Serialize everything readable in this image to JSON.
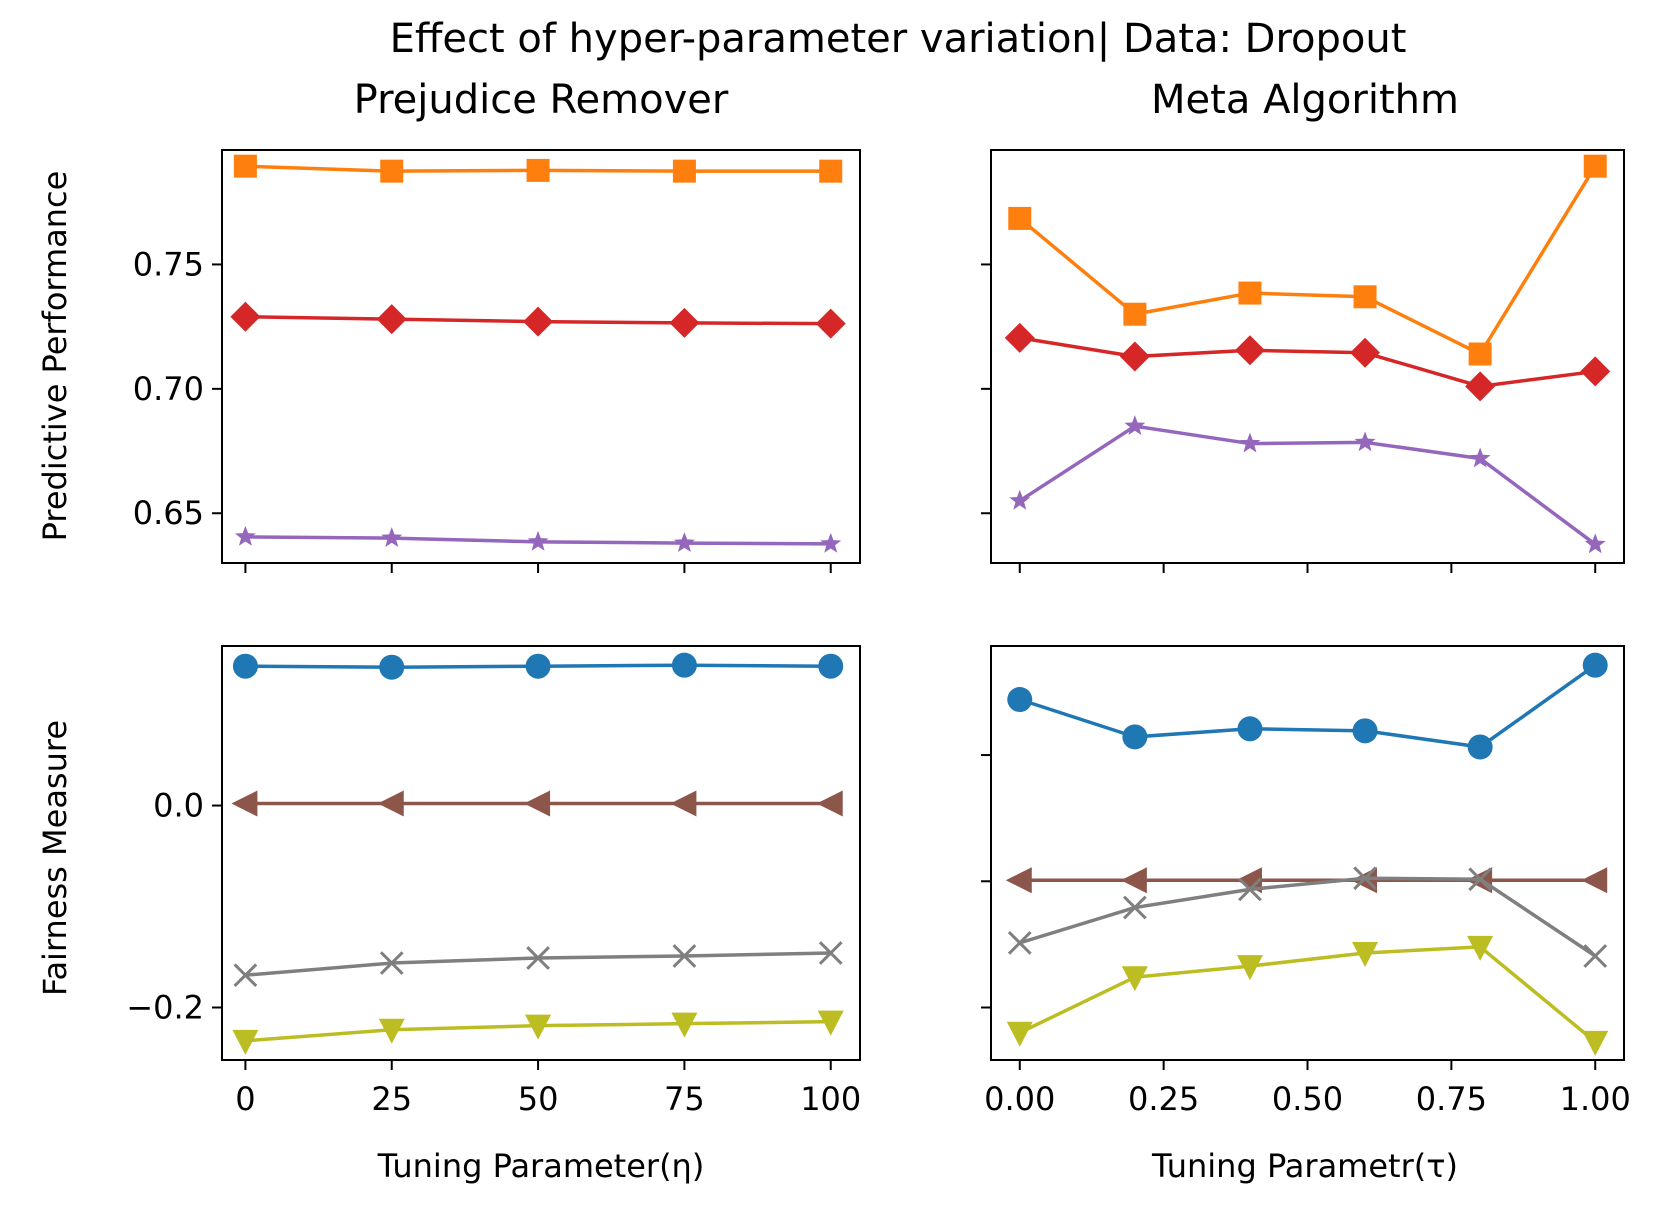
{
  "figure_title": "Effect of hyper-parameter variation| Data: Dropout",
  "columns": [
    "Prejudice Remover",
    "Meta Algorithm"
  ],
  "row_labels": [
    "Predictive Performance",
    "Fairness Measure"
  ],
  "x_labels": [
    "Tuning Parameter(η)",
    "Tuning Parametr(τ)"
  ],
  "colors": {
    "blue": "#1f77b4",
    "orange": "#ff7f0e",
    "red": "#d62728",
    "purple": "#9467bd",
    "brown": "#8c564b",
    "gray": "#7f7f7f",
    "olive": "#bcbd22"
  },
  "chart_data": [
    {
      "type": "line",
      "panel": "Prejudice Remover / Predictive Performance",
      "title": "Prejudice Remover",
      "xlabel": "",
      "ylabel": "Predictive Performance",
      "x": [
        0,
        25,
        50,
        75,
        100
      ],
      "xlim": [
        -4,
        105
      ],
      "ylim": [
        0.63,
        0.796
      ],
      "xticks": [
        0,
        25,
        50,
        75,
        100
      ],
      "xtick_labels_visible": false,
      "yticks": [
        0.65,
        0.7,
        0.75
      ],
      "ytick_labels": [
        "0.65",
        "0.70",
        "0.75"
      ],
      "grid": false,
      "series": [
        {
          "color": "#ff7f0e",
          "marker": "square",
          "values": [
            0.7895,
            0.7875,
            0.7878,
            0.7875,
            0.7875
          ]
        },
        {
          "color": "#d62728",
          "marker": "diamond",
          "values": [
            0.729,
            0.728,
            0.727,
            0.7265,
            0.7262
          ]
        },
        {
          "color": "#9467bd",
          "marker": "star",
          "values": [
            0.6405,
            0.64,
            0.6385,
            0.638,
            0.6377
          ]
        }
      ]
    },
    {
      "type": "line",
      "panel": "Meta Algorithm / Predictive Performance",
      "title": "Meta Algorithm",
      "xlabel": "",
      "ylabel": "",
      "x": [
        0.0,
        0.2,
        0.4,
        0.6,
        0.8,
        1.0
      ],
      "xlim": [
        -0.05,
        1.05
      ],
      "ylim": [
        0.63,
        0.796
      ],
      "xticks": [
        0.0,
        0.25,
        0.5,
        0.75,
        1.0
      ],
      "xtick_labels_visible": false,
      "yticks": [
        0.65,
        0.7,
        0.75
      ],
      "ytick_labels_visible": false,
      "grid": false,
      "series": [
        {
          "color": "#ff7f0e",
          "marker": "square",
          "values": [
            0.7685,
            0.73,
            0.7385,
            0.737,
            0.714,
            0.7895
          ]
        },
        {
          "color": "#d62728",
          "marker": "diamond",
          "values": [
            0.7205,
            0.713,
            0.7155,
            0.7145,
            0.701,
            0.707
          ]
        },
        {
          "color": "#9467bd",
          "marker": "star",
          "values": [
            0.655,
            0.685,
            0.678,
            0.6785,
            0.672,
            0.6375
          ]
        }
      ]
    },
    {
      "type": "line",
      "panel": "Prejudice Remover / Fairness Measure",
      "title": "",
      "xlabel": "Tuning Parameter(η)",
      "ylabel": "Fairness Measure",
      "x": [
        0,
        25,
        50,
        75,
        100
      ],
      "xlim": [
        -4,
        105
      ],
      "ylim": [
        -0.252,
        0.158
      ],
      "xticks": [
        0,
        25,
        50,
        75,
        100
      ],
      "xtick_labels": [
        "0",
        "25",
        "50",
        "75",
        "100"
      ],
      "yticks": [
        -0.2,
        0.0
      ],
      "ytick_labels": [
        "−0.2",
        "0.0"
      ],
      "grid": false,
      "series": [
        {
          "color": "#1f77b4",
          "marker": "circle",
          "values": [
            0.138,
            0.137,
            0.138,
            0.139,
            0.138
          ]
        },
        {
          "color": "#8c564b",
          "marker": "triangle-left",
          "values": [
            0.002,
            0.002,
            0.002,
            0.002,
            0.002
          ]
        },
        {
          "color": "#7f7f7f",
          "marker": "x",
          "values": [
            -0.168,
            -0.156,
            -0.151,
            -0.149,
            -0.146
          ]
        },
        {
          "color": "#bcbd22",
          "marker": "triangle-down",
          "values": [
            -0.233,
            -0.222,
            -0.218,
            -0.216,
            -0.214
          ]
        }
      ]
    },
    {
      "type": "line",
      "panel": "Meta Algorithm / Fairness Measure",
      "title": "",
      "xlabel": "Tuning Parametr(τ)",
      "ylabel": "",
      "x": [
        0.0,
        0.2,
        0.4,
        0.6,
        0.8,
        1.0
      ],
      "xlim": [
        -0.05,
        1.05
      ],
      "ylim": [
        -0.252,
        0.158
      ],
      "xticks": [
        0.0,
        0.25,
        0.5,
        0.75,
        1.0
      ],
      "xtick_labels": [
        "0.00",
        "0.25",
        "0.50",
        "0.75",
        "1.00"
      ],
      "yticks": [
        -0.2,
        -0.075,
        0.05
      ],
      "ytick_labels_visible": false,
      "grid": false,
      "series": [
        {
          "color": "#1f77b4",
          "marker": "circle",
          "values": [
            0.105,
            0.068,
            0.076,
            0.074,
            0.058,
            0.139
          ]
        },
        {
          "color": "#8c564b",
          "marker": "triangle-left",
          "values": [
            -0.074,
            -0.074,
            -0.074,
            -0.074,
            -0.074,
            -0.074
          ]
        },
        {
          "color": "#7f7f7f",
          "marker": "x",
          "values": [
            -0.136,
            -0.101,
            -0.083,
            -0.072,
            -0.073,
            -0.149
          ]
        },
        {
          "color": "#bcbd22",
          "marker": "triangle-down",
          "values": [
            -0.225,
            -0.17,
            -0.159,
            -0.146,
            -0.14,
            -0.234
          ]
        }
      ]
    }
  ]
}
